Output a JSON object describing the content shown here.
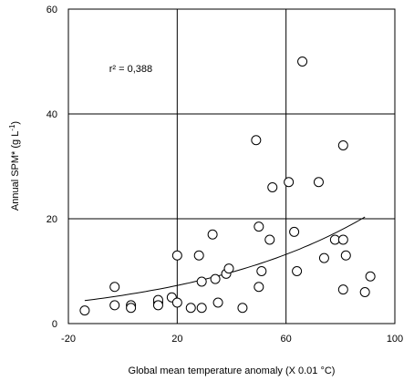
{
  "chart_data": {
    "type": "scatter",
    "title": "",
    "xlabel": "Global mean temperature anomaly (X 0.01 °C)",
    "ylabel_main": "Annual SPM* (g L",
    "ylabel_sup": "-1",
    "ylabel_tail": ")",
    "xlim": [
      -20,
      100
    ],
    "ylim": [
      0,
      60
    ],
    "x_ticks": [
      -20,
      20,
      60,
      100
    ],
    "y_ticks": [
      0,
      20,
      40,
      60
    ],
    "x_tick_labels": [
      "-20",
      "20",
      "60",
      "100"
    ],
    "y_tick_labels": [
      "0",
      "20",
      "40",
      "60"
    ],
    "grid": true,
    "legend": "none",
    "annotation": {
      "text": "r² = 0,388",
      "x": -5,
      "y": 48
    },
    "points": [
      {
        "x": -14,
        "y": 2.5
      },
      {
        "x": -3,
        "y": 7
      },
      {
        "x": -3,
        "y": 3.5
      },
      {
        "x": 3,
        "y": 3.5
      },
      {
        "x": 3,
        "y": 3
      },
      {
        "x": 13,
        "y": 4
      },
      {
        "x": 13,
        "y": 4.5
      },
      {
        "x": 13,
        "y": 3.5
      },
      {
        "x": 18,
        "y": 5
      },
      {
        "x": 20,
        "y": 4
      },
      {
        "x": 20,
        "y": 13
      },
      {
        "x": 25,
        "y": 3
      },
      {
        "x": 28,
        "y": 13
      },
      {
        "x": 29,
        "y": 8
      },
      {
        "x": 29,
        "y": 3
      },
      {
        "x": 33,
        "y": 17
      },
      {
        "x": 34,
        "y": 8.5
      },
      {
        "x": 35,
        "y": 4
      },
      {
        "x": 38,
        "y": 9.5
      },
      {
        "x": 39,
        "y": 10.5
      },
      {
        "x": 44,
        "y": 3
      },
      {
        "x": 49,
        "y": 35
      },
      {
        "x": 50,
        "y": 18.5
      },
      {
        "x": 50,
        "y": 7
      },
      {
        "x": 51,
        "y": 10
      },
      {
        "x": 54,
        "y": 16
      },
      {
        "x": 55,
        "y": 26
      },
      {
        "x": 61,
        "y": 27
      },
      {
        "x": 63,
        "y": 17.5
      },
      {
        "x": 64,
        "y": 10
      },
      {
        "x": 66,
        "y": 50
      },
      {
        "x": 72,
        "y": 27
      },
      {
        "x": 74,
        "y": 12.5
      },
      {
        "x": 78,
        "y": 16
      },
      {
        "x": 81,
        "y": 34
      },
      {
        "x": 81,
        "y": 16
      },
      {
        "x": 81,
        "y": 6.5
      },
      {
        "x": 82,
        "y": 13
      },
      {
        "x": 89,
        "y": 6
      },
      {
        "x": 91,
        "y": 9
      }
    ],
    "trendline": {
      "type": "exponential",
      "a": 5.4,
      "b": 0.0149,
      "x_from": -14,
      "x_to": 89
    },
    "colors": {
      "marker_stroke": "#000000",
      "marker_fill": "#ffffff",
      "grid": "#000000",
      "line": "#000000"
    }
  }
}
